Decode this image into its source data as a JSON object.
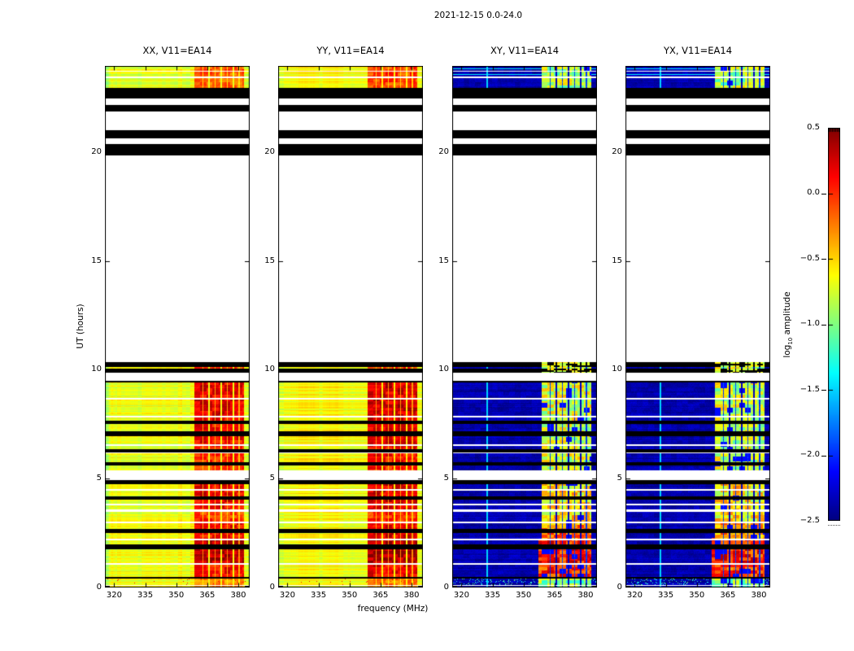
{
  "chart_data": {
    "type": "heatmap",
    "title": "2021-12-15 0.0-24.0",
    "xlabel": "frequency (MHz)",
    "ylabel": "UT (hours)",
    "xlim": [
      315.5,
      385.5
    ],
    "ylim": [
      0,
      24
    ],
    "xticks": [
      320,
      335,
      350,
      365,
      380
    ],
    "yticks": [
      0,
      5,
      10,
      15,
      20
    ],
    "panels": [
      {
        "title": "XX, V11=EA14",
        "pol": "XX",
        "style": "parallel",
        "base_log10_amp": -0.68,
        "stripe_boost": 0.0
      },
      {
        "title": "YY, V11=EA14",
        "pol": "YY",
        "style": "parallel",
        "base_log10_amp": -0.62,
        "stripe_boost": 0.07
      },
      {
        "title": "XY, V11=EA14",
        "pol": "XY",
        "style": "cross",
        "base_log10_amp": -2.37,
        "stripe_boost": 0.0
      },
      {
        "title": "YX, V11=EA14",
        "pol": "YX",
        "style": "cross",
        "base_log10_amp": -2.37,
        "stripe_boost": -0.02
      }
    ],
    "colorbar": {
      "label_pre": "log",
      "label_sub": "10",
      "label_post": " amplitude",
      "colormap": "jet",
      "vmin": -2.5,
      "vmax": 0.5,
      "tick_values": [
        0.5,
        0.0,
        -0.5,
        -1.0,
        -1.5,
        -2.0,
        -2.5
      ],
      "tick_labels": [
        "0.5",
        "0.0",
        "−0.5",
        "−1.0",
        "−1.5",
        "−2.0",
        "−2.5"
      ]
    },
    "rfi_band_mhz": [
      358.8,
      382.8
    ],
    "rfi_gaps_mhz": {
      "major": [
        365.8,
        371.7,
        377.6
      ],
      "minor": [
        362.9,
        368.7,
        374.6,
        380.4
      ]
    },
    "cyan_line_mhz": 332.4,
    "stripe_profile_parallel": [
      [
        0.0,
        0.5,
        -0.28
      ],
      [
        0.5,
        1.13,
        0.1
      ],
      [
        1.13,
        2.24,
        0.32
      ],
      [
        2.24,
        2.96,
        0.1
      ],
      [
        2.96,
        3.6,
        -0.05
      ],
      [
        3.6,
        4.94,
        0.15
      ],
      [
        4.94,
        6.4,
        0.0
      ],
      [
        6.4,
        7.7,
        0.12
      ],
      [
        7.7,
        9.52,
        0.18
      ],
      [
        9.52,
        10.36,
        -0.1
      ],
      [
        10.36,
        24.0,
        -0.12
      ]
    ],
    "stripe_profile_cross": [
      [
        0.0,
        0.5,
        -0.95
      ],
      [
        0.5,
        1.13,
        0.0
      ],
      [
        1.13,
        2.24,
        0.05
      ],
      [
        2.24,
        2.96,
        -0.3
      ],
      [
        2.96,
        4.94,
        -0.55
      ],
      [
        4.94,
        9.52,
        -0.75
      ],
      [
        9.52,
        10.36,
        -0.8
      ],
      [
        10.36,
        24.0,
        -0.85
      ]
    ],
    "time_bands": [
      [
        0.0,
        0.06,
        "d",
        ""
      ],
      [
        0.06,
        0.13,
        "w",
        ""
      ],
      [
        0.13,
        0.42,
        "d",
        "sp"
      ],
      [
        0.42,
        0.5,
        "b",
        ""
      ],
      [
        0.5,
        1.05,
        "d",
        ""
      ],
      [
        1.05,
        1.13,
        "w",
        ""
      ],
      [
        1.13,
        1.75,
        "d",
        ""
      ],
      [
        1.75,
        2.0,
        "b",
        ""
      ],
      [
        2.0,
        2.16,
        "d",
        ""
      ],
      [
        2.16,
        2.24,
        "w",
        ""
      ],
      [
        2.24,
        2.52,
        "d",
        ""
      ],
      [
        2.52,
        2.68,
        "b",
        ""
      ],
      [
        2.68,
        2.96,
        "d",
        ""
      ],
      [
        2.96,
        3.04,
        "w",
        ""
      ],
      [
        3.04,
        3.5,
        "d",
        ""
      ],
      [
        3.5,
        3.58,
        "w",
        ""
      ],
      [
        3.58,
        3.78,
        "d",
        ""
      ],
      [
        3.78,
        3.86,
        "w",
        ""
      ],
      [
        3.86,
        4.04,
        "d",
        ""
      ],
      [
        4.04,
        4.18,
        "b",
        ""
      ],
      [
        4.18,
        4.46,
        "d",
        ""
      ],
      [
        4.46,
        4.54,
        "w",
        ""
      ],
      [
        4.54,
        4.76,
        "d",
        ""
      ],
      [
        4.76,
        4.94,
        "b",
        ""
      ],
      [
        4.94,
        5.4,
        "w",
        ""
      ],
      [
        5.4,
        5.6,
        "d",
        ""
      ],
      [
        5.6,
        5.76,
        "b",
        ""
      ],
      [
        5.76,
        6.16,
        "d",
        ""
      ],
      [
        6.16,
        6.22,
        "w",
        ""
      ],
      [
        6.22,
        6.36,
        "b",
        ""
      ],
      [
        6.36,
        6.52,
        "d",
        ""
      ],
      [
        6.52,
        6.6,
        "w",
        ""
      ],
      [
        6.6,
        6.98,
        "d",
        ""
      ],
      [
        6.98,
        7.18,
        "b",
        ""
      ],
      [
        7.18,
        7.54,
        "d",
        ""
      ],
      [
        7.54,
        7.68,
        "b",
        ""
      ],
      [
        7.68,
        7.82,
        "d",
        ""
      ],
      [
        7.82,
        7.9,
        "w",
        ""
      ],
      [
        7.9,
        8.64,
        "d",
        ""
      ],
      [
        8.64,
        8.72,
        "w",
        ""
      ],
      [
        8.72,
        9.42,
        "d",
        ""
      ],
      [
        9.42,
        9.52,
        "b",
        ""
      ],
      [
        9.52,
        9.9,
        "w",
        ""
      ],
      [
        9.9,
        10.08,
        "b",
        "st"
      ],
      [
        10.08,
        10.16,
        "d",
        ""
      ],
      [
        10.16,
        10.36,
        "b",
        "st"
      ],
      [
        10.36,
        19.88,
        "w",
        ""
      ],
      [
        19.88,
        20.4,
        "b",
        ""
      ],
      [
        20.4,
        20.66,
        "w",
        ""
      ],
      [
        20.66,
        21.04,
        "b",
        ""
      ],
      [
        21.04,
        21.9,
        "w",
        ""
      ],
      [
        21.9,
        22.2,
        "b",
        ""
      ],
      [
        22.2,
        22.5,
        "w",
        ""
      ],
      [
        22.5,
        23.0,
        "b",
        ""
      ],
      [
        23.0,
        23.44,
        "d",
        ""
      ],
      [
        23.44,
        23.52,
        "w",
        ""
      ],
      [
        23.52,
        23.72,
        "d",
        "ln"
      ],
      [
        23.72,
        23.78,
        "w",
        ""
      ],
      [
        23.78,
        24.0,
        "d",
        "ln"
      ]
    ]
  }
}
